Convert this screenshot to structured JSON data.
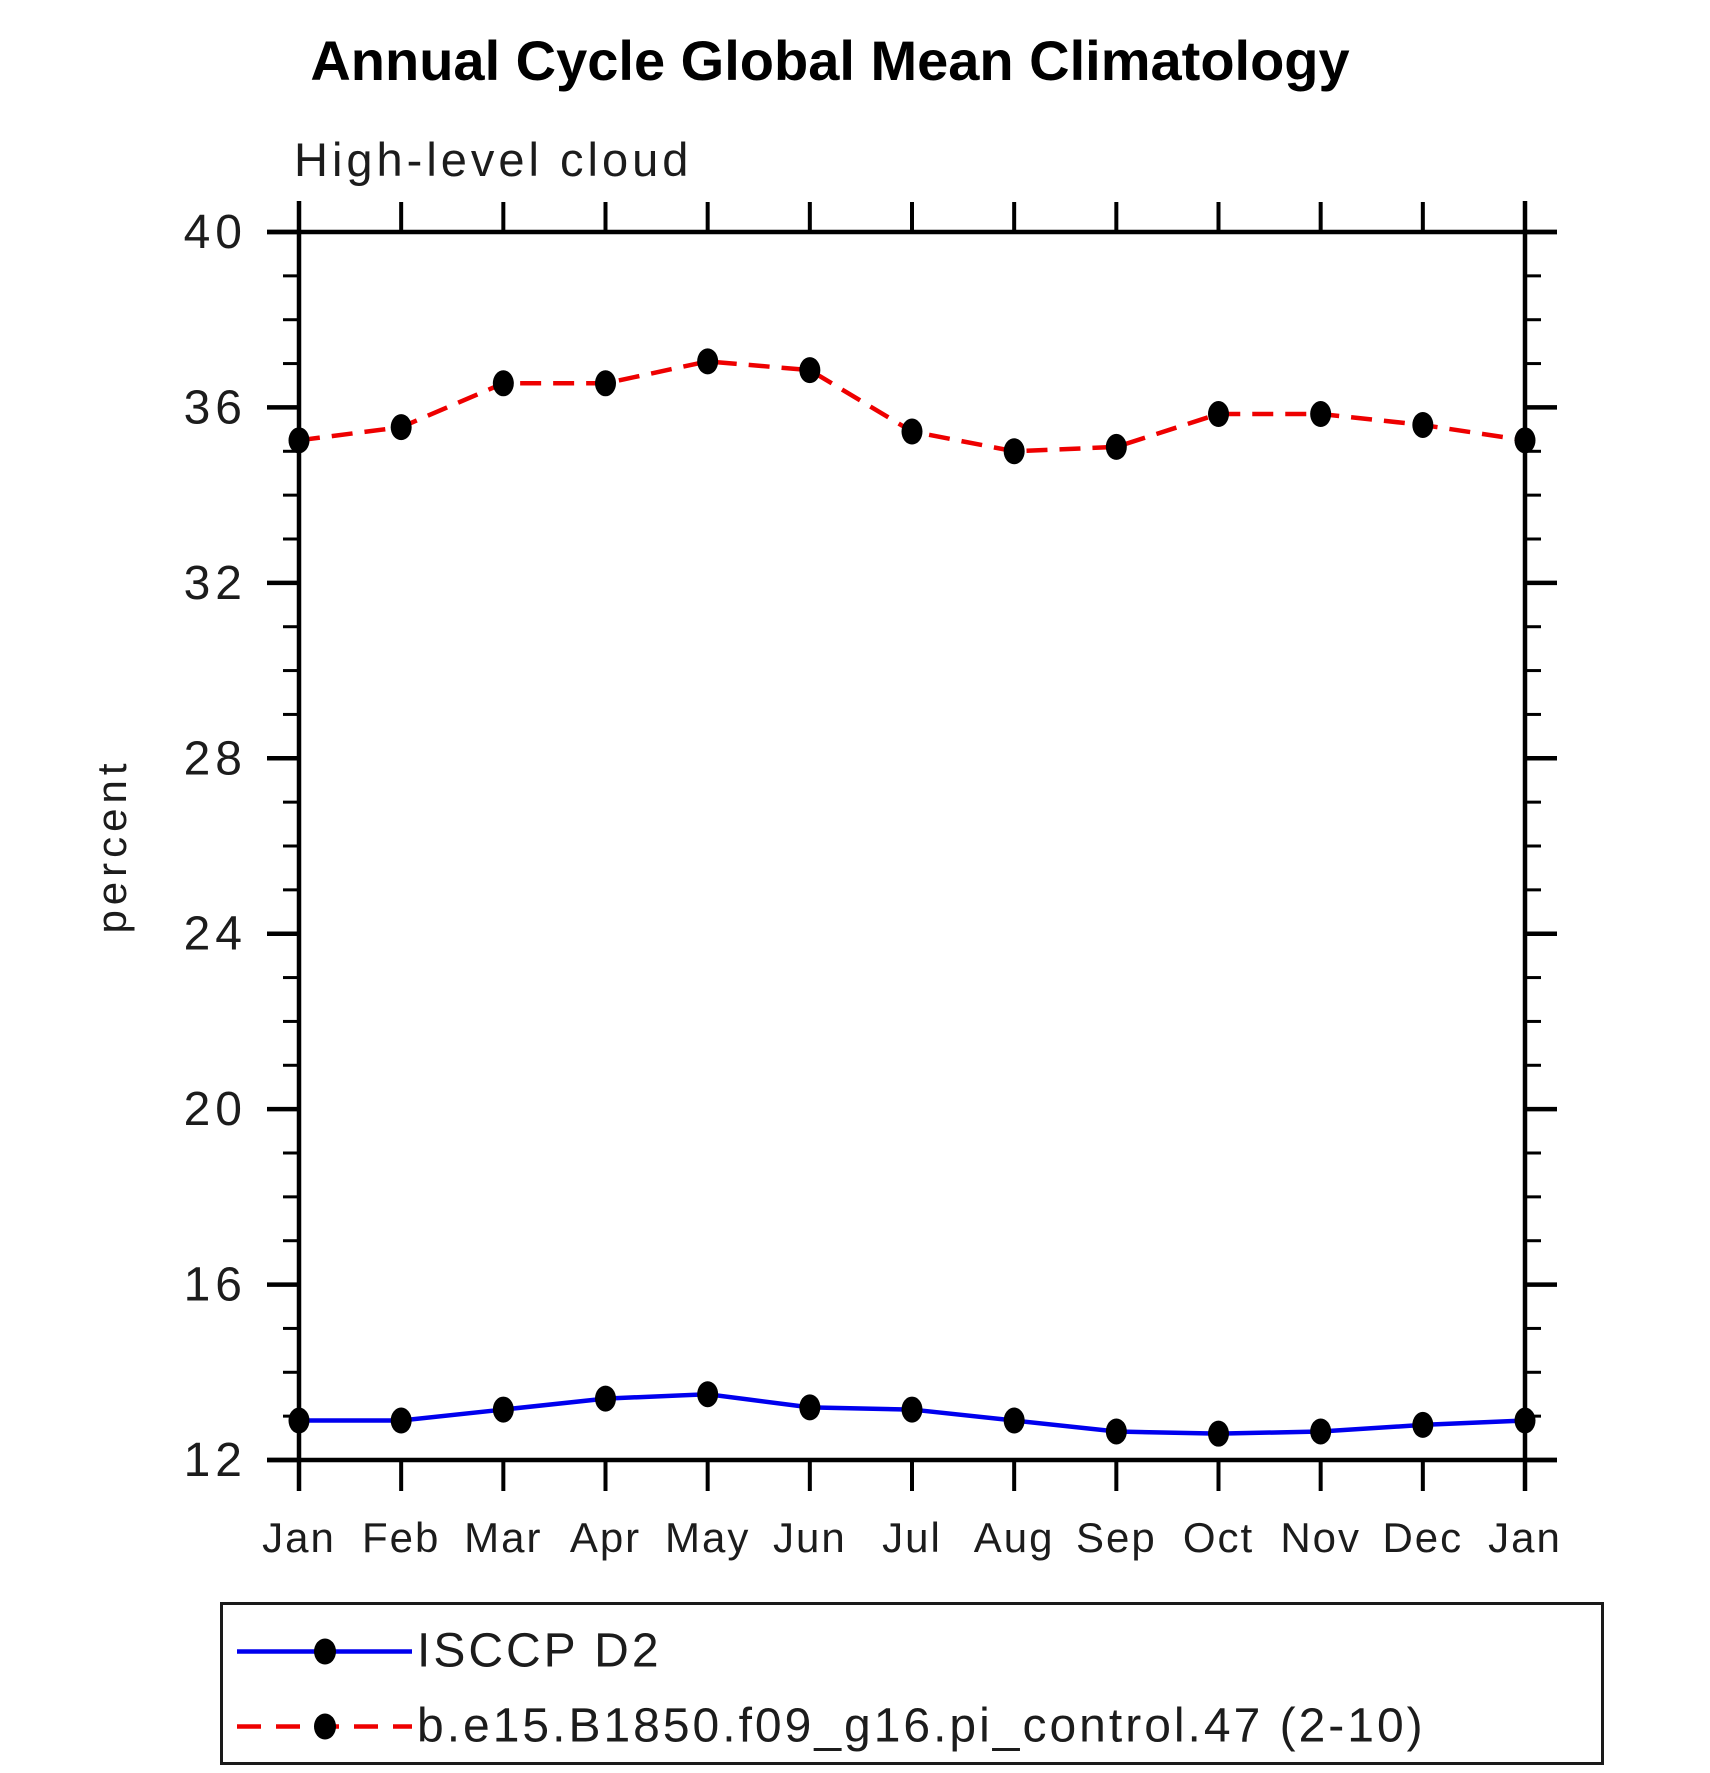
{
  "chart_data": {
    "type": "line",
    "title": "Annual Cycle Global Mean Climatology",
    "subtitle": "High-level cloud",
    "xlabel": "",
    "ylabel": "percent",
    "categories": [
      "Jan",
      "Feb",
      "Mar",
      "Apr",
      "May",
      "Jun",
      "Jul",
      "Aug",
      "Sep",
      "Oct",
      "Nov",
      "Dec",
      "Jan"
    ],
    "ylim": [
      12,
      40
    ],
    "yticks": [
      12,
      16,
      20,
      24,
      28,
      32,
      36,
      40
    ],
    "minor_tick_step": 1,
    "grid": false,
    "legend_position": "bottom",
    "axis_color": "#000000",
    "marker_color": "#000000",
    "series": [
      {
        "name": "ISCCP D2",
        "color": "#0000ee",
        "style": "solid",
        "marker": "filled-circle",
        "values": [
          12.9,
          12.9,
          13.15,
          13.4,
          13.5,
          13.2,
          13.15,
          12.9,
          12.65,
          12.6,
          12.65,
          12.8,
          12.9
        ]
      },
      {
        "name": "b.e15.B1850.f09_g16.pi_control.47 (2-10)",
        "color": "#ee0000",
        "style": "dashed",
        "marker": "filled-circle",
        "values": [
          35.25,
          35.55,
          36.55,
          36.55,
          37.05,
          36.85,
          35.45,
          35.0,
          35.1,
          35.85,
          35.85,
          35.6,
          35.25
        ]
      }
    ]
  }
}
